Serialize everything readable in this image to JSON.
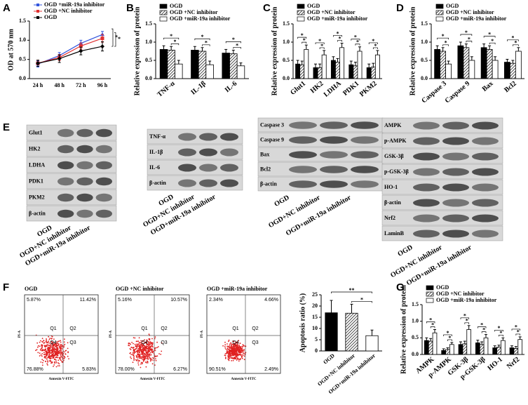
{
  "chart_data": [
    {
      "type": "line",
      "panel_label": "A",
      "ylabel": "OD at 570 nm",
      "categories": [
        "24 h",
        "48 h",
        "72 h",
        "96 h"
      ],
      "ylim": [
        0,
        1.5
      ],
      "yticks": [
        {
          "value": 0,
          "label": "0.0"
        },
        0.5,
        {
          "value": 1,
          "label": "1.0"
        },
        1.5
      ],
      "series": [
        {
          "name": "OGD +miR-19a inhibitor",
          "color": "#3355dd",
          "marker": "triangle",
          "values": [
            0.38,
            0.6,
            0.92,
            1.15
          ],
          "errors": [
            0.08,
            0.08,
            0.08,
            0.08
          ]
        },
        {
          "name": "OGD +NC inhibitor",
          "color": "#e03030",
          "marker": "square",
          "values": [
            0.4,
            0.55,
            0.85,
            1.05
          ],
          "errors": [
            0.08,
            0.08,
            0.08,
            0.1
          ]
        },
        {
          "name": "OGD",
          "color": "#000000",
          "marker": "diamond",
          "values": [
            0.4,
            0.52,
            0.72,
            0.84
          ],
          "errors": [
            0.08,
            0.1,
            0.1,
            0.12
          ]
        }
      ],
      "annotations": [
        "*",
        "*"
      ]
    },
    {
      "type": "bar",
      "panel_label": "B",
      "ylabel": "Relative expression of protein",
      "categories": [
        "TNF-α",
        "IL-1β",
        "IL-6"
      ],
      "ylim": [
        0,
        1.5
      ],
      "yticks": [
        {
          "value": 0,
          "label": "0.0"
        },
        0.5,
        {
          "value": 1,
          "label": "1.0"
        },
        1.5
      ],
      "series": [
        {
          "name": "OGD",
          "color": "#000000",
          "fill": "solid",
          "values": [
            0.8,
            0.78,
            0.7
          ],
          "errors": [
            0.1,
            0.1,
            0.1
          ]
        },
        {
          "name": "OGD +NC inhibitor",
          "color": "#000000",
          "fill": "hatch",
          "values": [
            0.78,
            0.75,
            0.68
          ],
          "errors": [
            0.1,
            0.1,
            0.1
          ]
        },
        {
          "name": "OGD +miR-19a inhibitor",
          "color": "#000000",
          "fill": "open",
          "values": [
            0.4,
            0.38,
            0.35
          ],
          "errors": [
            0.1,
            0.1,
            0.08
          ]
        }
      ],
      "annotations": [
        "*",
        "*",
        "*",
        "*",
        "*",
        "*"
      ]
    },
    {
      "type": "bar",
      "panel_label": "C",
      "ylabel": "Relative expression of protein",
      "categories": [
        "Glut1",
        "HK2",
        "LDHA",
        "PDK1",
        "PKM2"
      ],
      "ylim": [
        0,
        1.5
      ],
      "yticks": [
        {
          "value": 0,
          "label": "0.0"
        },
        0.5,
        {
          "value": 1,
          "label": "1.0"
        },
        1.5
      ],
      "series": [
        {
          "name": "OGD",
          "color": "#000000",
          "fill": "solid",
          "values": [
            0.4,
            0.3,
            0.5,
            0.38,
            0.3
          ],
          "errors": [
            0.1,
            0.1,
            0.1,
            0.1,
            0.1
          ]
        },
        {
          "name": "OGD +NC inhibitor",
          "color": "#000000",
          "fill": "hatch",
          "values": [
            0.38,
            0.3,
            0.45,
            0.35,
            0.32
          ],
          "errors": [
            0.1,
            0.1,
            0.1,
            0.1,
            0.1
          ]
        },
        {
          "name": "OGD +miR-19a inhibitor",
          "color": "#000000",
          "fill": "open",
          "values": [
            0.8,
            0.65,
            0.85,
            0.75,
            0.65
          ],
          "errors": [
            0.12,
            0.12,
            0.12,
            0.12,
            0.12
          ]
        }
      ],
      "annotations": [
        "*",
        "*",
        "*",
        "*",
        "*",
        "*",
        "*",
        "*",
        "*",
        "*"
      ]
    },
    {
      "type": "bar",
      "panel_label": "D",
      "ylabel": "Relative expression of protein",
      "categories": [
        "Caspase 3",
        "Caspase 9",
        "Bax",
        "Bcl2"
      ],
      "ylim": [
        0,
        1.5
      ],
      "yticks": [
        {
          "value": 0,
          "label": "0.0"
        },
        0.5,
        {
          "value": 1,
          "label": "1.0"
        },
        1.5
      ],
      "series": [
        {
          "name": "OGD",
          "color": "#000000",
          "fill": "solid",
          "values": [
            0.8,
            0.9,
            0.85,
            0.45
          ],
          "errors": [
            0.1,
            0.1,
            0.1,
            0.08
          ]
        },
        {
          "name": "OGD +NC inhibitor",
          "color": "#000000",
          "fill": "hatch",
          "values": [
            0.75,
            0.85,
            0.8,
            0.42
          ],
          "errors": [
            0.1,
            0.1,
            0.1,
            0.08
          ]
        },
        {
          "name": "OGD +miR-19a inhibitor",
          "color": "#000000",
          "fill": "open",
          "values": [
            0.4,
            0.5,
            0.5,
            0.75
          ],
          "errors": [
            0.08,
            0.1,
            0.1,
            0.1
          ]
        }
      ],
      "annotations": [
        "*",
        "*",
        "*",
        "*",
        "*",
        "*",
        "*",
        "*"
      ]
    },
    {
      "type": "bar",
      "ylabel": "Apoptosis ratio (%)",
      "categories": [
        "OGD",
        "OGD+NC inhibitor",
        "OGD+miR-19a inhibitor"
      ],
      "ylim": [
        0,
        25
      ],
      "yticks": [
        0,
        5,
        10,
        15,
        20,
        25
      ],
      "values": [
        17,
        16.8,
        6.8
      ],
      "errors": [
        5.5,
        4,
        2.5
      ],
      "color": "#000000",
      "fills": [
        "solid",
        "hatch",
        "open"
      ],
      "annotations": [
        "**",
        "*"
      ]
    },
    {
      "type": "bar",
      "panel_label": "G",
      "ylabel": "Relative expression of protein",
      "categories": [
        "AMPK",
        "p-AMPK",
        "GSK-3β",
        "p-GSK-3β",
        "HO-1",
        "Nrf2"
      ],
      "ylim": [
        0,
        1.5
      ],
      "yticks": [
        {
          "value": 0,
          "label": "0.0"
        },
        0.5,
        {
          "value": 1,
          "label": "1.0"
        },
        1.5
      ],
      "series": [
        {
          "name": "OGD",
          "color": "#000000",
          "fill": "solid",
          "values": [
            0.42,
            0.12,
            0.3,
            0.35,
            0.2,
            0.2
          ],
          "errors": [
            0.08,
            0.05,
            0.08,
            0.08,
            0.06,
            0.06
          ]
        },
        {
          "name": "OGD +NC inhibitor",
          "color": "#000000",
          "fill": "hatch",
          "values": [
            0.4,
            0.15,
            0.32,
            0.3,
            0.22,
            0.18
          ],
          "errors": [
            0.08,
            0.05,
            0.08,
            0.08,
            0.06,
            0.06
          ]
        },
        {
          "name": "OGD +miR-19a inhibitor",
          "color": "#000000",
          "fill": "open",
          "values": [
            0.65,
            0.3,
            0.75,
            0.5,
            0.42,
            0.45
          ],
          "errors": [
            0.1,
            0.06,
            0.12,
            0.1,
            0.08,
            0.08
          ]
        }
      ],
      "annotations": [
        "*",
        "*",
        "*",
        "*",
        "*",
        "*",
        "*",
        "*",
        "*",
        "*",
        "*",
        "*"
      ]
    }
  ],
  "blots": {
    "panel_label": "E",
    "groups": [
      {
        "rows": [
          "Glut1",
          "HK2",
          "LDHA",
          "PDK1",
          "PKM2",
          "β-actin"
        ],
        "lanes": [
          "OGD",
          "OGD+NC inhibitor",
          "OGD+miR-19a inhibitor"
        ]
      },
      {
        "rows": [
          "TNF-α",
          "IL-1β",
          "IL-6",
          "β-actin"
        ],
        "lanes": [
          "OGD",
          "OGD+NC inhibitor",
          "OGD+miR-19a inhibitor"
        ]
      },
      {
        "rows": [
          "Caspase 3",
          "Caspase 9",
          "Bax",
          "Bcl2",
          "β-actin"
        ],
        "lanes": [
          "OGD",
          "OGD+NC inhibitor",
          "OGD+miR-19a inhibitor"
        ]
      },
      {
        "rows": [
          "AMPK",
          "p-AMPK",
          "GSK-3β",
          "p-GSK-3β",
          "HO-1",
          "β-actin",
          "Nrf2",
          "LaminB"
        ],
        "lanes": [
          "OGD",
          "OGD+NC inhibitor",
          "OGD+miR-19a inhibitor"
        ]
      }
    ]
  },
  "flow": {
    "panel_label": "F",
    "xlabel": "Annexin V-FITC",
    "ylabel": "PI-A",
    "quadrants": [
      "Q1",
      "Q2",
      "Q4",
      "Q3"
    ],
    "plots": [
      {
        "title": "OGD",
        "percents": [
          "5.87%",
          "11.42%",
          "76.88%",
          "5.83%"
        ]
      },
      {
        "title": "OGD +NC inhibitor",
        "percents": [
          "5.16%",
          "10.57%",
          "78.00%",
          "6.27%"
        ]
      },
      {
        "title": "OGD +miR-19a inhibitor",
        "percents": [
          "2.34%",
          "4.66%",
          "90.51%",
          "2.49%"
        ]
      }
    ]
  }
}
